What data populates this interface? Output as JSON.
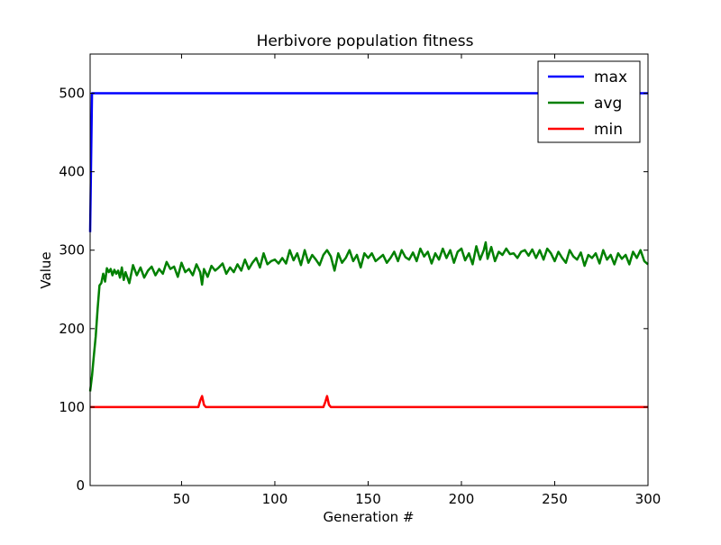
{
  "chart_data": {
    "type": "line",
    "title": "Herbivore population fitness",
    "xlabel": "Generation #",
    "ylabel": "Value",
    "xlim": [
      1,
      300
    ],
    "ylim": [
      0,
      550
    ],
    "xticks": [
      50,
      100,
      150,
      200,
      250,
      300
    ],
    "xtick_labels": [
      "50",
      "100",
      "150",
      "200",
      "250",
      "300"
    ],
    "yticks": [
      0,
      100,
      200,
      300,
      400,
      500
    ],
    "ytick_labels": [
      "0",
      "100",
      "200",
      "300",
      "400",
      "500"
    ],
    "grid": false,
    "legend_position": "top-right",
    "series": [
      {
        "name": "max",
        "color": "#0000ff",
        "x": [
          1,
          2,
          3,
          300
        ],
        "y": [
          323,
          500,
          500,
          500
        ]
      },
      {
        "name": "avg",
        "color": "#008000",
        "x": [
          1,
          2,
          3,
          4,
          5,
          6,
          7,
          8,
          9,
          10,
          11,
          12,
          13,
          14,
          15,
          16,
          17,
          18,
          19,
          20,
          22,
          24,
          26,
          28,
          30,
          32,
          34,
          36,
          38,
          40,
          42,
          44,
          46,
          48,
          50,
          52,
          54,
          56,
          58,
          60,
          61,
          62,
          64,
          66,
          68,
          70,
          72,
          74,
          76,
          78,
          80,
          82,
          84,
          86,
          88,
          90,
          92,
          94,
          96,
          98,
          100,
          102,
          104,
          106,
          108,
          110,
          112,
          114,
          116,
          118,
          120,
          122,
          124,
          126,
          128,
          130,
          132,
          134,
          136,
          138,
          140,
          142,
          144,
          146,
          148,
          150,
          152,
          154,
          156,
          158,
          160,
          162,
          164,
          166,
          168,
          170,
          172,
          174,
          176,
          178,
          180,
          182,
          184,
          186,
          188,
          190,
          192,
          194,
          196,
          198,
          200,
          202,
          204,
          206,
          208,
          210,
          212,
          213,
          214,
          216,
          218,
          220,
          222,
          224,
          226,
          228,
          230,
          232,
          234,
          236,
          238,
          240,
          242,
          244,
          246,
          248,
          250,
          252,
          254,
          256,
          258,
          260,
          262,
          264,
          266,
          268,
          270,
          272,
          274,
          276,
          278,
          280,
          282,
          284,
          286,
          288,
          290,
          292,
          294,
          296,
          298,
          300
        ],
        "y": [
          120,
          140,
          165,
          190,
          225,
          255,
          258,
          270,
          260,
          277,
          272,
          276,
          268,
          275,
          270,
          274,
          265,
          278,
          262,
          272,
          258,
          281,
          268,
          278,
          265,
          274,
          279,
          268,
          276,
          270,
          285,
          276,
          279,
          266,
          284,
          272,
          276,
          268,
          282,
          272,
          256,
          276,
          266,
          280,
          274,
          278,
          283,
          270,
          278,
          272,
          282,
          274,
          288,
          276,
          284,
          290,
          278,
          296,
          282,
          286,
          288,
          283,
          290,
          283,
          300,
          287,
          296,
          281,
          300,
          284,
          294,
          288,
          281,
          294,
          300,
          292,
          274,
          296,
          284,
          290,
          300,
          286,
          294,
          278,
          296,
          290,
          296,
          286,
          290,
          294,
          284,
          290,
          298,
          286,
          300,
          291,
          288,
          297,
          286,
          302,
          292,
          298,
          283,
          296,
          288,
          302,
          290,
          300,
          284,
          298,
          302,
          287,
          296,
          282,
          305,
          288,
          300,
          310,
          289,
          304,
          286,
          298,
          294,
          302,
          295,
          296,
          290,
          298,
          300,
          293,
          301,
          290,
          300,
          288,
          302,
          296,
          286,
          298,
          290,
          284,
          300,
          292,
          288,
          297,
          280,
          294,
          290,
          296,
          283,
          300,
          288,
          294,
          282,
          296,
          289,
          294,
          282,
          298,
          290,
          300,
          286,
          282
        ]
      },
      {
        "name": "min",
        "color": "#ff0000",
        "x": [
          1,
          58,
          59,
          60,
          61,
          62,
          63,
          125,
          126,
          127,
          128,
          129,
          130,
          300
        ],
        "y": [
          100,
          100,
          100,
          108,
          114,
          103,
          100,
          100,
          100,
          106,
          114,
          103,
          100,
          100
        ]
      }
    ]
  }
}
